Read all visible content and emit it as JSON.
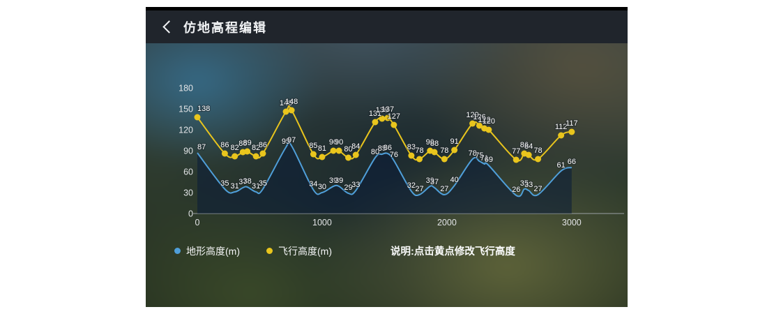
{
  "header": {
    "title": "仿地高程编辑"
  },
  "note": "说明:点击黄点修改飞行高度",
  "chart_data": {
    "type": "line",
    "x": [
      0,
      220,
      300,
      365,
      400,
      470,
      525,
      710,
      755,
      930,
      1000,
      1090,
      1135,
      1210,
      1270,
      1425,
      1480,
      1525,
      1575,
      1715,
      1780,
      1865,
      1900,
      1980,
      2060,
      2205,
      2260,
      2300,
      2335,
      2555,
      2620,
      2655,
      2730,
      2915,
      3000
    ],
    "series": [
      {
        "name": "地形高度(m)",
        "color": "#4f9fda",
        "area_fill": "rgba(10,28,56,0.55)",
        "show_points": false,
        "values": [
          87,
          35,
          31,
          37,
          38,
          31,
          35,
          95,
          97,
          34,
          30,
          39,
          39,
          29,
          33,
          80,
          85,
          86,
          76,
          32,
          27,
          39,
          37,
          27,
          40,
          78,
          75,
          71,
          69,
          26,
          35,
          33,
          27,
          61,
          66
        ]
      },
      {
        "name": "飞行高度(m)",
        "color": "#e9c51d",
        "show_points": true,
        "values": [
          138,
          86,
          82,
          88,
          89,
          82,
          86,
          146,
          148,
          85,
          81,
          90,
          90,
          80,
          84,
          131,
          136,
          137,
          127,
          83,
          78,
          90,
          88,
          78,
          91,
          129,
          126,
          122,
          120,
          77,
          86,
          84,
          78,
          112,
          117
        ]
      }
    ],
    "xticks": [
      "0",
      "1000",
      "2000",
      "3000"
    ],
    "yticks": [
      "0",
      "30",
      "60",
      "90",
      "120",
      "150",
      "180"
    ],
    "xlim": [
      0,
      3420
    ],
    "ylim": [
      0,
      186
    ],
    "grid": false,
    "legend_position": "bottom"
  }
}
